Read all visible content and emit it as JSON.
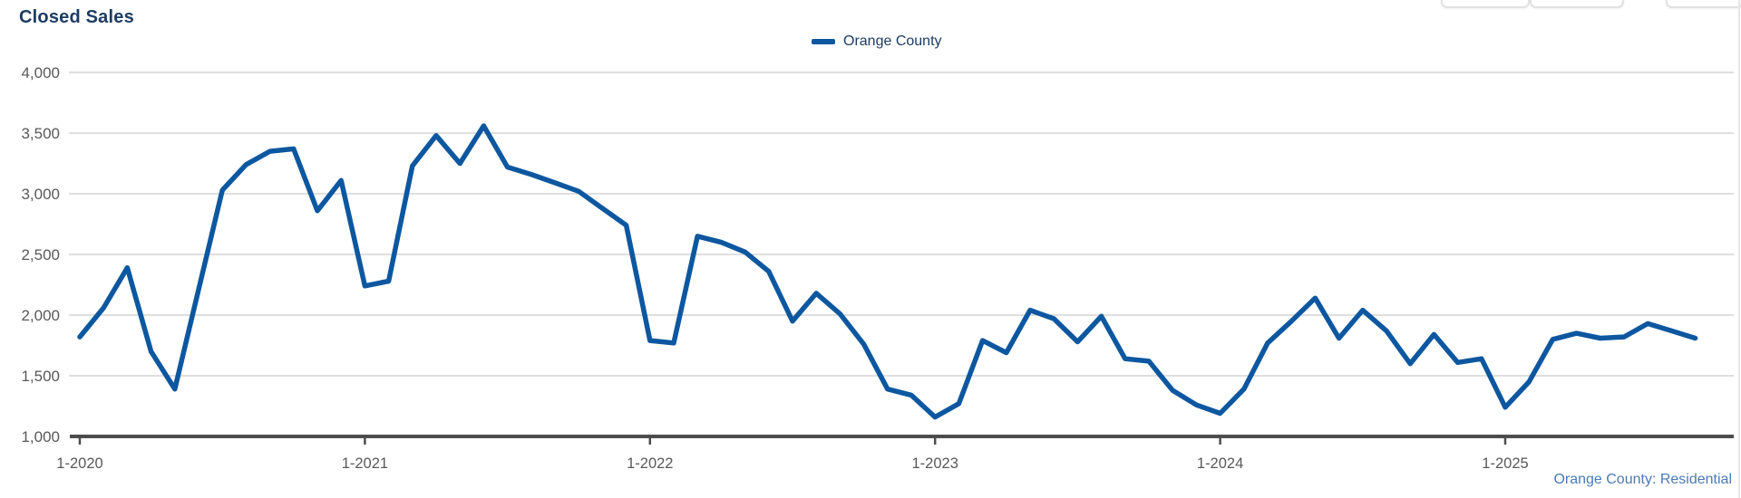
{
  "header": {
    "title": "Closed Sales"
  },
  "legend": {
    "items": [
      {
        "label": "Orange County",
        "color": "#0d57a0"
      }
    ]
  },
  "footer": {
    "source_note": "Orange County: Residential"
  },
  "chart_data": {
    "type": "line",
    "title": "Closed Sales",
    "x_start_label": "1-2020",
    "x_end_label": "9-2025",
    "x_tick_labels": [
      "1-2020",
      "1-2021",
      "1-2022",
      "1-2023",
      "1-2024",
      "1-2025"
    ],
    "x_months_per_tick": 12,
    "y_tick_labels": [
      "4,000",
      "3,500",
      "3,000",
      "2,500",
      "2,000",
      "1,500",
      "1,000"
    ],
    "ylim": [
      1000,
      4000
    ],
    "grid": true,
    "legend_position": "top-center",
    "series": [
      {
        "name": "Orange County",
        "color": "#0d57a0",
        "values": [
          1820,
          2060,
          2390,
          1700,
          1390,
          2210,
          3030,
          3240,
          3350,
          3370,
          2860,
          3110,
          2240,
          2280,
          3230,
          3480,
          3250,
          3560,
          3220,
          3160,
          3090,
          3020,
          2880,
          2740,
          1790,
          1770,
          2650,
          2600,
          2520,
          2360,
          1950,
          2180,
          2010,
          1760,
          1390,
          1340,
          1160,
          1270,
          1790,
          1690,
          2040,
          1970,
          1780,
          1990,
          1640,
          1620,
          1380,
          1260,
          1190,
          1390,
          1770,
          1950,
          2140,
          1810,
          2040,
          1870,
          1600,
          1840,
          1610,
          1640,
          1240,
          1450,
          1800,
          1850,
          1810,
          1820,
          1930,
          1870,
          1810
        ]
      }
    ]
  }
}
